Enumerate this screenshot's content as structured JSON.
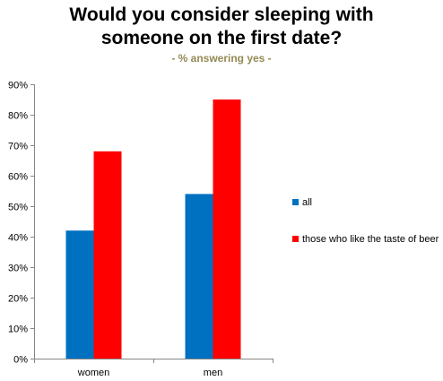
{
  "chart_data": {
    "type": "bar",
    "title_lines": [
      "Would you consider sleeping with",
      "someone on the first date?"
    ],
    "subtitle": "- % answering yes -",
    "categories": [
      "women",
      "men"
    ],
    "series": [
      {
        "name": "all",
        "values": [
          42,
          54
        ],
        "color": "#0070c0"
      },
      {
        "name": "those who like the taste of beer",
        "values": [
          68,
          85
        ],
        "color": "#ff0000"
      }
    ],
    "y_ticks": [
      "0%",
      "10%",
      "20%",
      "30%",
      "40%",
      "50%",
      "60%",
      "70%",
      "80%",
      "90%"
    ],
    "ylim": [
      0,
      90
    ],
    "grid": false,
    "legend_position": "right"
  }
}
